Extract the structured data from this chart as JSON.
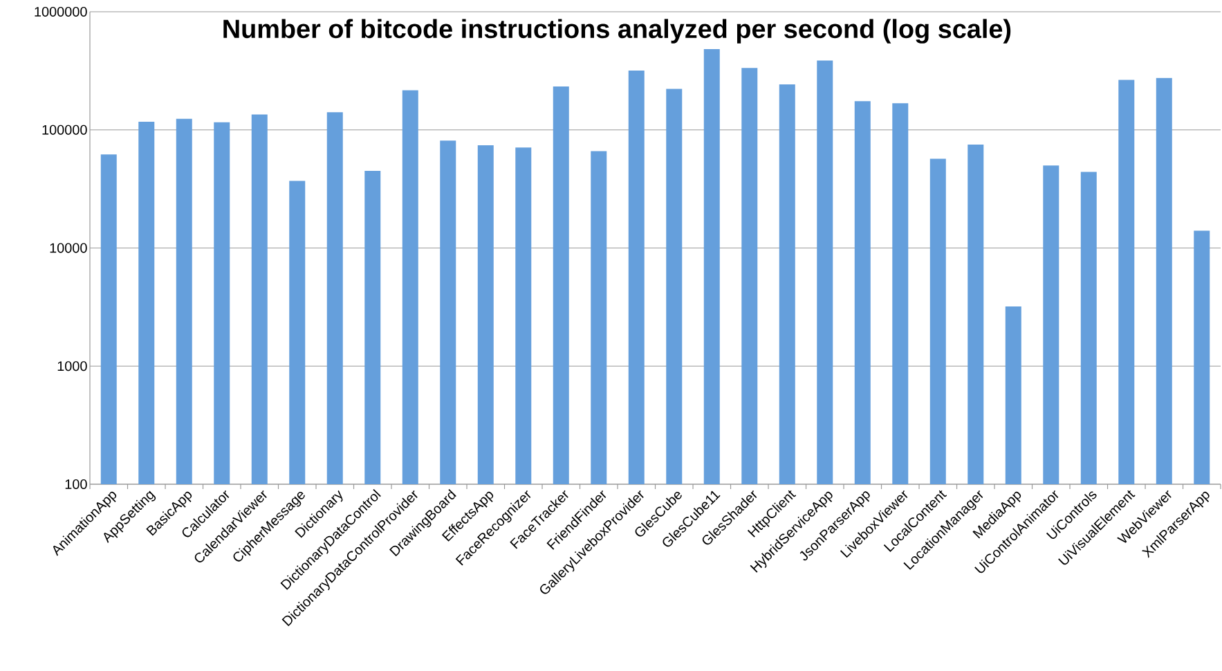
{
  "chart_data": {
    "type": "bar",
    "title": "Number of bitcode instructions analyzed per second (log scale)",
    "categories": [
      "AnimationApp",
      "AppSetting",
      "BasicApp",
      "Calculator",
      "CalendarViewer",
      "CipherMessage",
      "Dictionary",
      "DictionaryDataControl",
      "DictionaryDataControlProvider",
      "DrawingBoard",
      "EffectsApp",
      "FaceRecognizer",
      "FaceTracker",
      "FriendFinder",
      "GalleryLiveboxProvider",
      "GlesCube",
      "GlesCube11",
      "GlesShader",
      "HttpClient",
      "HybridServiceApp",
      "JsonParserApp",
      "LiveboxViewer",
      "LocalContent",
      "LocationManager",
      "MediaApp",
      "UiControlAnimator",
      "UiControls",
      "UiVisualElement",
      "WebViewer",
      "XmlParserApp"
    ],
    "values": [
      62000,
      117000,
      124000,
      116000,
      135000,
      37000,
      141000,
      45000,
      216000,
      81000,
      74000,
      71000,
      233000,
      66000,
      318000,
      222000,
      482000,
      334000,
      243000,
      386000,
      175000,
      168000,
      57000,
      75000,
      3200,
      50000,
      44000,
      265000,
      275000,
      14000
    ],
    "color": "#659fdc",
    "log": true,
    "grid": "y",
    "ylim": [
      100,
      1000000
    ],
    "yticks": [
      100,
      1000,
      10000,
      100000,
      1000000
    ]
  }
}
